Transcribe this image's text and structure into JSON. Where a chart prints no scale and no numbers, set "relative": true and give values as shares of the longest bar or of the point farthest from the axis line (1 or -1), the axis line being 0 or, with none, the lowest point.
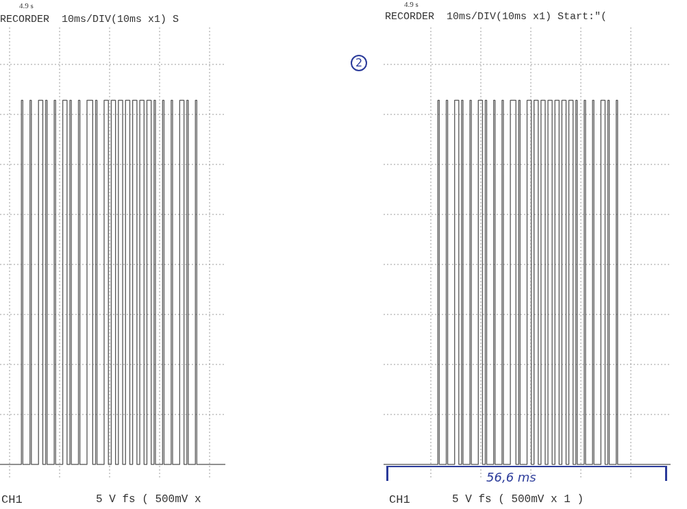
{
  "chart_data": [
    {
      "type": "step",
      "title": "RECORDER  10ms/DIV(10ms x1) S",
      "relative": true,
      "grid": true,
      "annotations": [
        "4.9 s",
        "CH1",
        "5 V fs ( 500mV x"
      ],
      "categories": [
        null,
        null,
        null,
        null,
        null,
        null,
        null,
        null,
        null,
        null,
        null,
        null,
        null,
        null,
        null,
        null,
        null,
        null,
        null,
        null,
        null,
        null,
        null,
        null,
        null,
        null,
        null,
        null,
        null,
        null,
        null,
        null,
        null,
        null,
        null,
        null,
        null,
        null,
        null,
        null,
        null,
        null,
        null,
        null,
        null,
        null,
        null,
        null,
        null,
        null,
        null,
        null,
        null,
        null,
        null,
        null,
        null,
        null,
        null,
        null,
        null,
        null,
        null,
        null,
        null,
        null,
        null,
        null,
        null,
        null,
        null,
        null,
        null,
        null,
        null,
        null,
        null,
        null,
        null,
        null,
        null,
        null,
        null,
        null,
        null,
        null,
        null,
        null,
        null,
        null,
        null,
        null,
        null,
        null,
        null,
        null,
        null,
        null,
        null,
        null,
        null,
        null,
        null,
        null,
        null,
        null,
        null,
        null,
        null,
        null,
        null,
        null,
        null,
        null,
        null,
        null,
        null,
        null,
        null,
        null,
        null,
        null,
        null,
        null,
        null,
        null,
        null,
        null,
        null,
        null,
        null,
        null,
        null,
        null,
        null,
        null,
        null,
        null,
        null,
        null,
        null,
        null,
        null,
        null,
        null,
        null,
        null,
        null,
        null,
        null,
        null,
        null,
        null,
        null,
        null,
        null,
        null,
        null,
        null
      ],
      "series": [
        {
          "color": "#555555",
          "values": [
            0,
            0,
            0,
            0,
            0,
            0,
            0,
            0,
            0,
            0,
            0,
            0,
            0,
            0,
            0,
            1,
            0,
            0,
            0,
            0,
            0,
            1,
            0,
            0,
            0,
            0,
            0,
            1,
            1,
            1,
            0,
            0,
            1,
            0,
            0,
            0,
            0,
            0,
            1,
            0,
            0,
            0,
            0,
            0,
            1,
            1,
            1,
            0,
            0,
            1,
            0,
            0,
            0,
            0,
            0,
            1,
            0,
            0,
            0,
            0,
            0,
            1,
            1,
            1,
            1,
            0,
            0,
            1,
            0,
            0,
            0,
            0,
            0,
            1,
            1,
            1,
            0,
            0,
            1,
            1,
            1,
            0,
            0,
            1,
            1,
            1,
            0,
            0,
            1,
            1,
            1,
            0,
            0,
            1,
            1,
            1,
            0,
            0,
            1,
            1,
            1,
            0,
            0,
            1,
            1,
            1,
            0,
            0,
            1,
            0,
            0,
            0,
            0,
            0,
            1,
            0,
            0,
            0,
            0,
            0,
            1,
            0,
            0,
            0,
            0,
            0,
            1,
            1,
            1,
            0,
            0,
            1,
            0,
            0,
            0,
            0,
            0,
            1,
            0,
            0,
            0,
            0,
            0,
            0,
            0,
            0,
            0,
            0,
            0,
            0,
            0,
            0,
            0,
            0,
            0,
            0,
            0,
            0,
            0
          ]
        }
      ]
    },
    {
      "type": "step",
      "title": "RECORDER  10ms/DIV(10ms x1) Start:\"(",
      "relative": true,
      "grid": true,
      "annotations": [
        "4.9 s",
        "CH1",
        "5 V fs ( 500mV x 1 )",
        "56,6 ms",
        "2"
      ],
      "categories": [
        null,
        null,
        null,
        null,
        null,
        null,
        null,
        null,
        null,
        null,
        null,
        null,
        null,
        null,
        null,
        null,
        null,
        null,
        null,
        null,
        null,
        null,
        null,
        null,
        null,
        null,
        null,
        null,
        null,
        null,
        null,
        null,
        null,
        null,
        null,
        null,
        null,
        null,
        null,
        null,
        null,
        null,
        null,
        null,
        null,
        null,
        null,
        null,
        null,
        null,
        null,
        null,
        null,
        null,
        null,
        null,
        null,
        null,
        null,
        null,
        null,
        null,
        null,
        null,
        null,
        null,
        null,
        null,
        null,
        null,
        null,
        null,
        null,
        null,
        null,
        null,
        null,
        null,
        null,
        null,
        null,
        null,
        null,
        null,
        null,
        null,
        null,
        null,
        null,
        null,
        null,
        null,
        null,
        null,
        null,
        null,
        null,
        null,
        null,
        null,
        null,
        null,
        null,
        null,
        null,
        null,
        null,
        null,
        null,
        null,
        null,
        null,
        null,
        null,
        null,
        null,
        null,
        null,
        null,
        null,
        null,
        null,
        null,
        null,
        null,
        null,
        null,
        null,
        null,
        null,
        null,
        null,
        null,
        null,
        null,
        null,
        null,
        null,
        null,
        null,
        null,
        null,
        null,
        null,
        null,
        null,
        null,
        null,
        null,
        null,
        null,
        null,
        null,
        null,
        null,
        null,
        null,
        null,
        null,
        null,
        null,
        null,
        null,
        null,
        null,
        null,
        null,
        null,
        null,
        null,
        null,
        null,
        null,
        null,
        null,
        null,
        null,
        null,
        null,
        null,
        null,
        null,
        null,
        null,
        null,
        null,
        null,
        null,
        null,
        null,
        null,
        null,
        null,
        null,
        null,
        null,
        null,
        null,
        null,
        null,
        null,
        null,
        null,
        null,
        null,
        null,
        null
      ],
      "series": [
        {
          "color": "#555555",
          "values": [
            0,
            0,
            0,
            0,
            0,
            0,
            0,
            0,
            0,
            0,
            0,
            0,
            0,
            0,
            0,
            0,
            0,
            0,
            0,
            0,
            0,
            0,
            0,
            0,
            0,
            0,
            0,
            0,
            0,
            0,
            0,
            0,
            0,
            0,
            0,
            0,
            0,
            0,
            0,
            1,
            0,
            0,
            0,
            0,
            0,
            1,
            0,
            0,
            0,
            0,
            0,
            1,
            1,
            1,
            0,
            0,
            1,
            0,
            0,
            0,
            0,
            0,
            1,
            0,
            0,
            0,
            0,
            0,
            1,
            1,
            1,
            0,
            0,
            1,
            0,
            0,
            0,
            0,
            0,
            1,
            0,
            0,
            0,
            0,
            0,
            1,
            0,
            0,
            0,
            0,
            0,
            1,
            1,
            1,
            1,
            0,
            0,
            1,
            0,
            0,
            0,
            0,
            0,
            1,
            1,
            1,
            0,
            0,
            1,
            1,
            1,
            0,
            0,
            1,
            1,
            1,
            0,
            0,
            1,
            1,
            1,
            0,
            0,
            1,
            1,
            1,
            0,
            0,
            1,
            1,
            1,
            0,
            0,
            1,
            1,
            1,
            0,
            0,
            1,
            0,
            0,
            0,
            0,
            0,
            1,
            0,
            0,
            0,
            0,
            0,
            1,
            0,
            0,
            0,
            0,
            0,
            1,
            1,
            1,
            0,
            0,
            1,
            0,
            0,
            0,
            0,
            0,
            1,
            0,
            0,
            0,
            0,
            0,
            0,
            0,
            0,
            0,
            0,
            0,
            0,
            0,
            0,
            0,
            0,
            0,
            0,
            0,
            0,
            0,
            0,
            0,
            0,
            0,
            0,
            0,
            0,
            0,
            0,
            0,
            0,
            0,
            0,
            0,
            0,
            0,
            0,
            0
          ]
        }
      ]
    }
  ]
}
